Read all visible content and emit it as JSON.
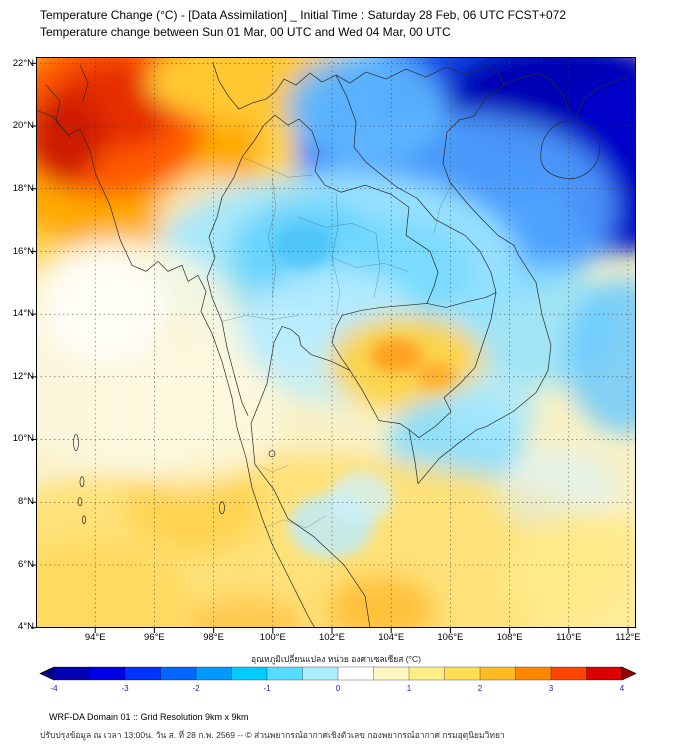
{
  "header": {
    "title_line1": "Temperature Change (°C) - [Data Assimilation] _ Initial Time : Saturday 28 Feb, 06 UTC FCST+072",
    "title_line2": "Temperature change between Sun 01 Mar, 00 UTC and Wed 04 Mar, 00 UTC"
  },
  "map": {
    "lat_ticks": [
      "22°N",
      "20°N",
      "18°N",
      "16°N",
      "14°N",
      "12°N",
      "10°N",
      "8°N",
      "6°N",
      "4°N"
    ],
    "lon_ticks": [
      "94°E",
      "96°E",
      "98°E",
      "100°E",
      "102°E",
      "104°E",
      "106°E",
      "108°E",
      "110°E",
      "112°E"
    ],
    "lat_range": "4°N to 22°N",
    "lon_range": "94°E to 112°E"
  },
  "colorbar": {
    "title": "อุณหภูมิเปลี่ยนแปลง หน่วย องศาเซลเซียส (°C)",
    "ticks": [
      "-4",
      "-3",
      "-2",
      "-1",
      "0",
      "1",
      "2",
      "3",
      "4"
    ],
    "min": -4,
    "max": 4,
    "colors": [
      "#000080",
      "#0000b2",
      "#0000e6",
      "#0033ff",
      "#0066ff",
      "#0099ff",
      "#00ccff",
      "#55ddff",
      "#aaeeff",
      "#ffffff",
      "#fff7c0",
      "#ffee88",
      "#ffdd55",
      "#ffbb22",
      "#ff8800",
      "#ff4400",
      "#dd0000",
      "#990000"
    ]
  },
  "footer": {
    "line1": "WRF-DA Domain 01 :: Grid Resolution 9km x 9km",
    "line2": "ปรับปรุงข้อมูล ณ เวลา 13:00น. วัน ส. ที่ 28 ก.พ. 2569 -- © ส่วนพยากรณ์อากาศเชิงตัวเลข กองพยากรณ์อากาศ กรมอุตุนิยมวิทยา"
  }
}
